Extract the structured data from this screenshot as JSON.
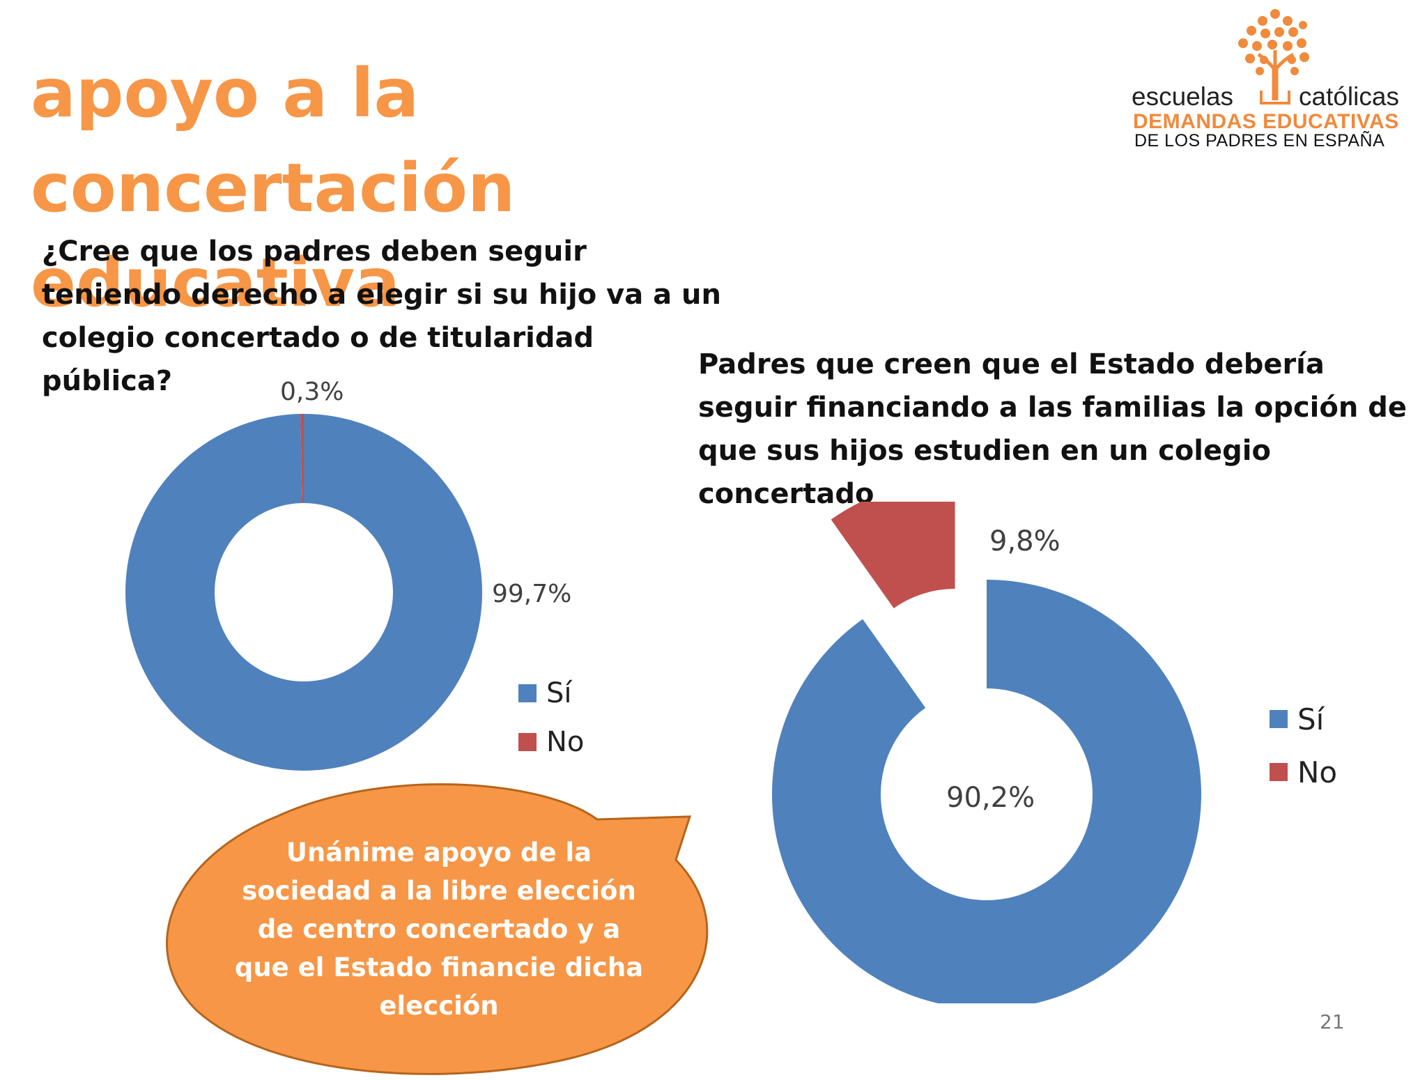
{
  "slide": {
    "title": "apoyo a la concertación educativa",
    "page_number": "21",
    "accent_color": "#f79646"
  },
  "logo": {
    "brand_left": "escuelas",
    "brand_right": "católicas",
    "line1": "DEMANDAS EDUCATIVAS",
    "line2": "DE LOS PADRES EN ESPAÑA",
    "icon": "tree-icon"
  },
  "callout": {
    "text": "Unánime apoyo de la sociedad a la libre elección de centro concertado y a que el Estado financie dicha elección",
    "fill_color": "#f79646"
  },
  "chart_data": [
    {
      "type": "pie",
      "title": "¿Cree que los padres deben seguir teniendo derecho a elegir si su hijo va a un colegio concertado o de titularidad pública?",
      "categories": [
        "Sí",
        "No"
      ],
      "values": [
        99.7,
        0.3
      ],
      "data_labels": [
        "99,7%",
        "0,3%"
      ],
      "colors": [
        "#4f81bd",
        "#c0504d"
      ],
      "style": "doughnut",
      "legend": "right"
    },
    {
      "type": "pie",
      "title": "Padres que creen que el Estado debería seguir financiando a las familias la opción de que sus hijos estudien en un colegio concertado",
      "categories": [
        "Sí",
        "No"
      ],
      "values": [
        90.2,
        9.8
      ],
      "data_labels": [
        "90,2%",
        "9,8%"
      ],
      "colors": [
        "#4f81bd",
        "#c0504d"
      ],
      "style": "exploded-doughnut",
      "legend": "right"
    }
  ]
}
